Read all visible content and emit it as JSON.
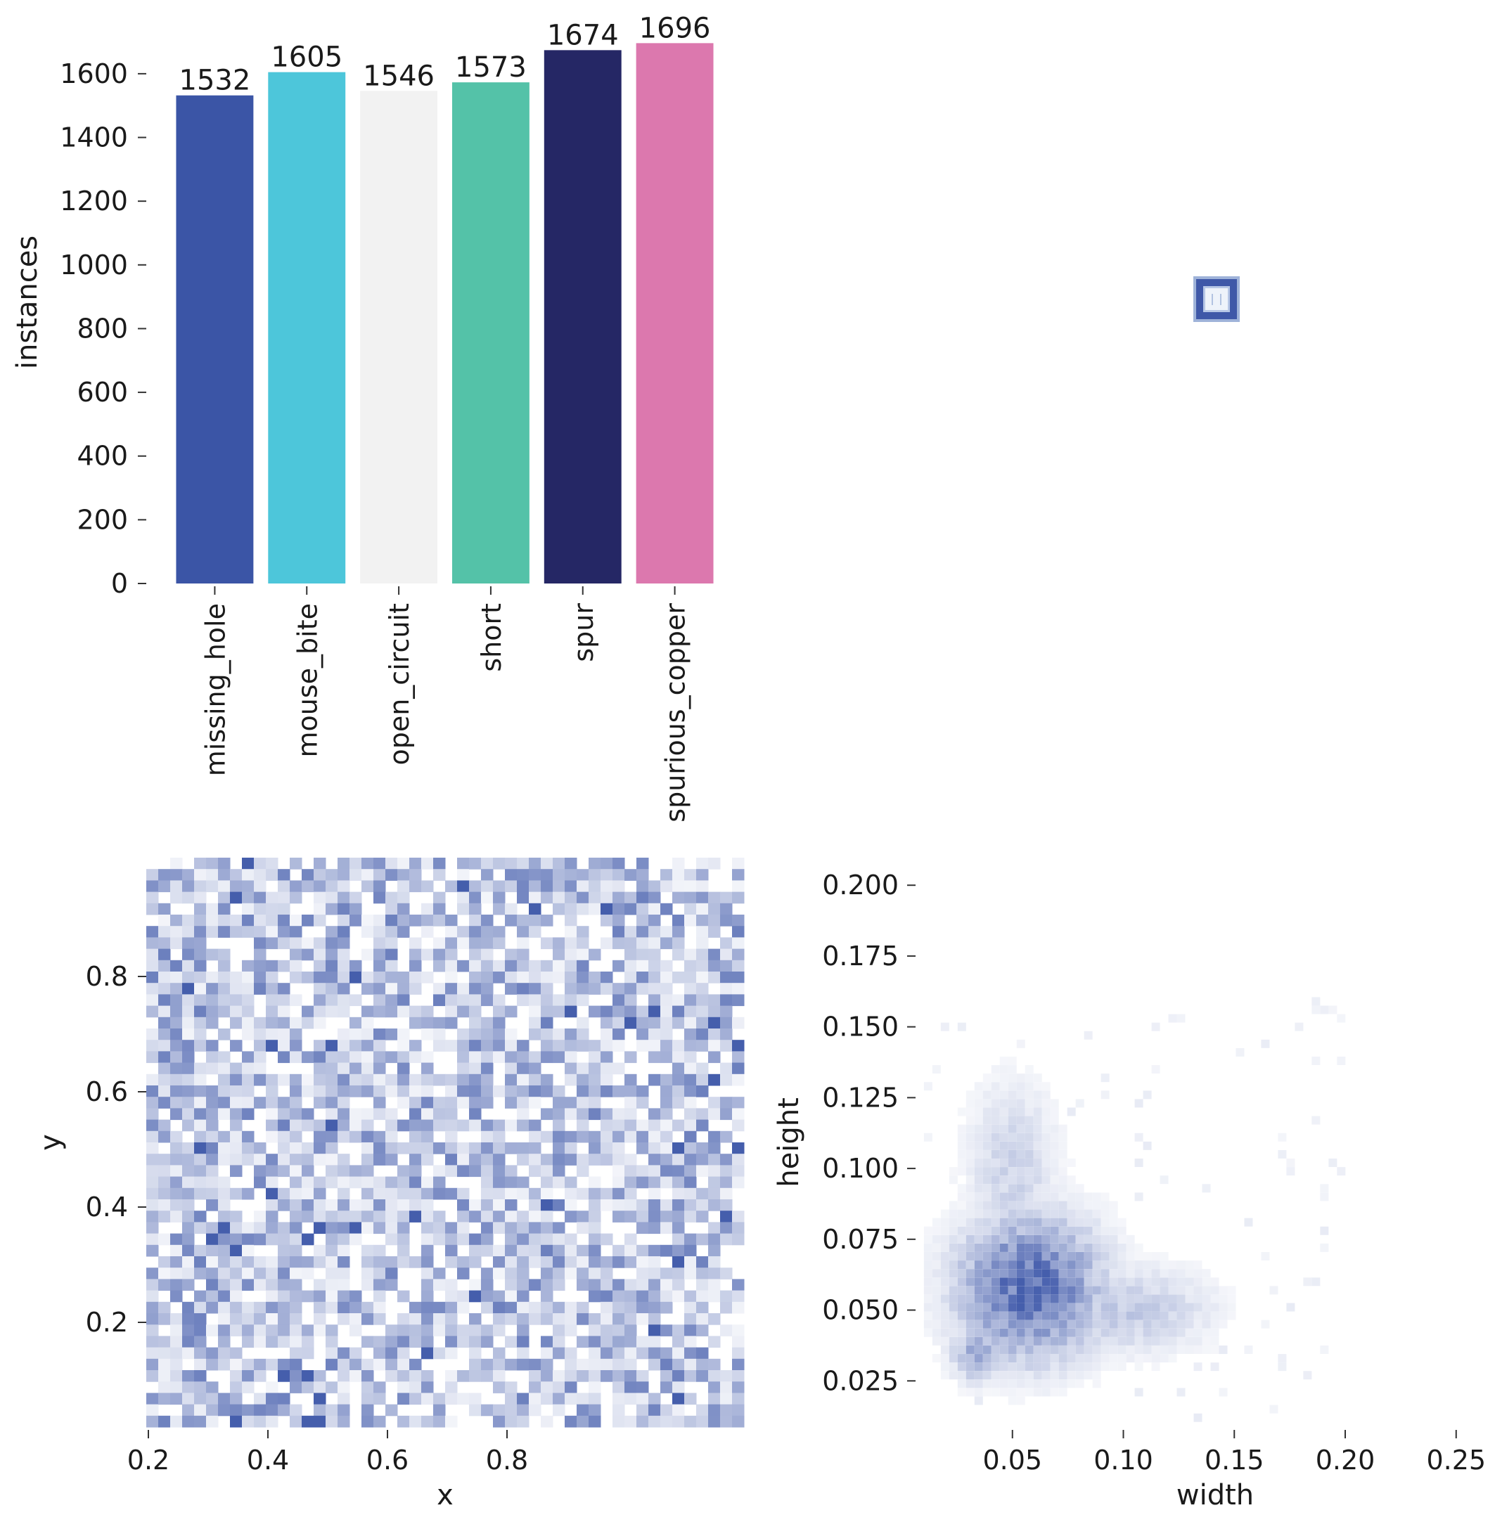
{
  "colors": {
    "heat": "#3b55a8",
    "axis": "#333333"
  },
  "chart_data": [
    {
      "type": "bar",
      "panel": "top-left",
      "categories": [
        "missing_hole",
        "mouse_bite",
        "open_circuit",
        "short",
        "spur",
        "spurious_copper"
      ],
      "values": [
        1532,
        1605,
        1546,
        1573,
        1674,
        1696
      ],
      "data_labels": [
        "1532",
        "1605",
        "1546",
        "1573",
        "1674",
        "1696"
      ],
      "colors": [
        "#3b55a6",
        "#4dc6da",
        "#f2f2f2",
        "#54c2a8",
        "#252765",
        "#dc78ae"
      ],
      "ylabel": "instances",
      "ylim": [
        0,
        1700
      ],
      "yticks": [
        0,
        200,
        400,
        600,
        800,
        1000,
        1200,
        1400,
        1600
      ],
      "ytick_labels": [
        "0",
        "200",
        "400",
        "600",
        "800",
        "1000",
        "1200",
        "1400",
        "1600"
      ],
      "grid": false
    },
    {
      "type": "other",
      "panel": "top-right",
      "description_icon": "bounding-box-overlay-icon"
    },
    {
      "type": "heatmap",
      "panel": "bottom-left",
      "xlabel": "x",
      "ylabel": "y",
      "xlim": [
        0.0,
        1.0
      ],
      "ylim": [
        0.0,
        1.0
      ],
      "xticks": [
        0.2,
        0.4,
        0.6,
        0.8
      ],
      "xtick_labels": [
        "0.2",
        "0.4",
        "0.6",
        "0.8"
      ],
      "yticks": [
        0.2,
        0.4,
        0.6,
        0.8
      ],
      "ytick_labels": [
        "0.2",
        "0.4",
        "0.6",
        "0.8"
      ],
      "bins": 50,
      "distribution": "roughly uniform over [0.02, 0.98] x [0.02, 0.98]"
    },
    {
      "type": "heatmap",
      "panel": "bottom-right",
      "xlabel": "width",
      "ylabel": "height",
      "xlim": [
        0.0,
        0.25
      ],
      "ylim": [
        0.0,
        0.21
      ],
      "xticks": [
        0.05,
        0.1,
        0.15,
        0.2,
        0.25
      ],
      "xtick_labels": [
        "0.05",
        "0.10",
        "0.15",
        "0.20",
        "0.25"
      ],
      "yticks": [
        0.025,
        0.05,
        0.075,
        0.1,
        0.125,
        0.15,
        0.175,
        0.2
      ],
      "ytick_labels": [
        "0.025",
        "0.050",
        "0.075",
        "0.100",
        "0.125",
        "0.150",
        "0.175",
        "0.200"
      ],
      "peak": {
        "width": 0.06,
        "height": 0.06
      },
      "distribution": "concentrated near width 0.04-0.08, height 0.03-0.08"
    }
  ]
}
